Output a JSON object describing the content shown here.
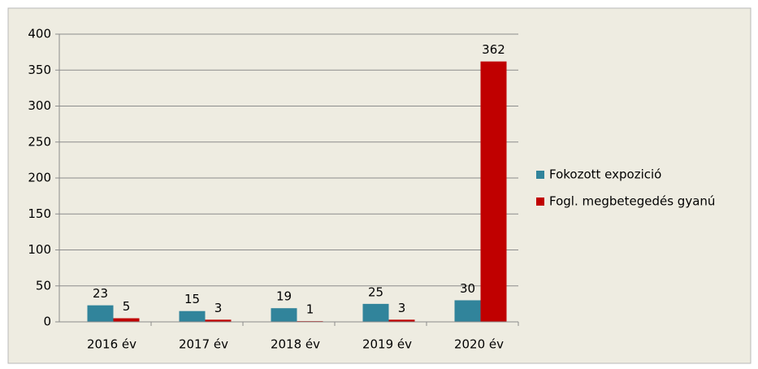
{
  "chart_data": {
    "type": "bar",
    "categories": [
      "2016 év",
      "2017 év",
      "2018 év",
      "2019 év",
      "2020 év"
    ],
    "series": [
      {
        "name": "Fokozott expozició",
        "color": "#31849b",
        "values": [
          23,
          15,
          19,
          25,
          30
        ]
      },
      {
        "name": "Fogl. megbetegedés gyanú",
        "color": "#c00000",
        "values": [
          5,
          3,
          1,
          3,
          362
        ]
      }
    ],
    "ylim": [
      0,
      400
    ],
    "yticks": [
      0,
      50,
      100,
      150,
      200,
      250,
      300,
      350,
      400
    ],
    "grid": true,
    "legend": "right"
  }
}
